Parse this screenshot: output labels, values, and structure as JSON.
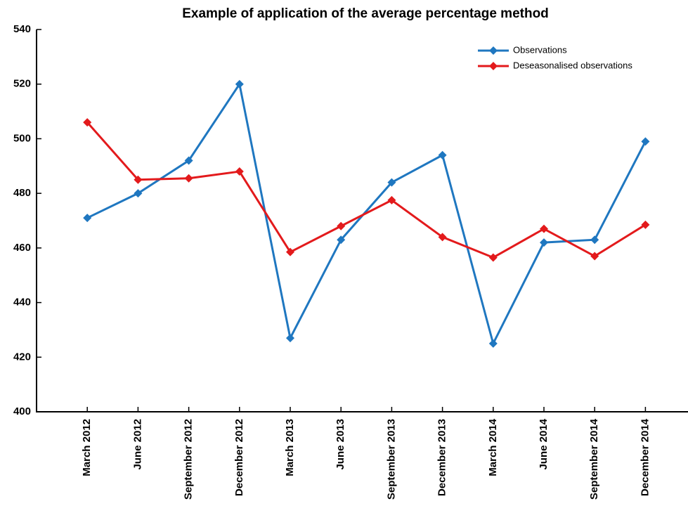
{
  "chart_data": {
    "type": "line",
    "title": "Example of application of the average percentage method",
    "categories": [
      "March 2012",
      "June 2012",
      "September 2012",
      "December 2012",
      "March 2013",
      "June 2013",
      "September 2013",
      "December 2013",
      "March 2014",
      "June 2014",
      "September 2014",
      "December 2014"
    ],
    "series": [
      {
        "name": "Observations",
        "color": "#1f77c0",
        "values": [
          471,
          480,
          492,
          520,
          427,
          463,
          484,
          494,
          425,
          462,
          463,
          499
        ]
      },
      {
        "name": "Deseasonalised observations",
        "color": "#e31a1c",
        "values": [
          506,
          485,
          485.5,
          488,
          458.5,
          468,
          477.5,
          464,
          456.5,
          467,
          457,
          468.5
        ]
      }
    ],
    "ylim": [
      400,
      540
    ],
    "yticks": [
      400,
      420,
      440,
      460,
      480,
      500,
      520,
      540
    ],
    "legend": "upper right",
    "grid": false
  }
}
